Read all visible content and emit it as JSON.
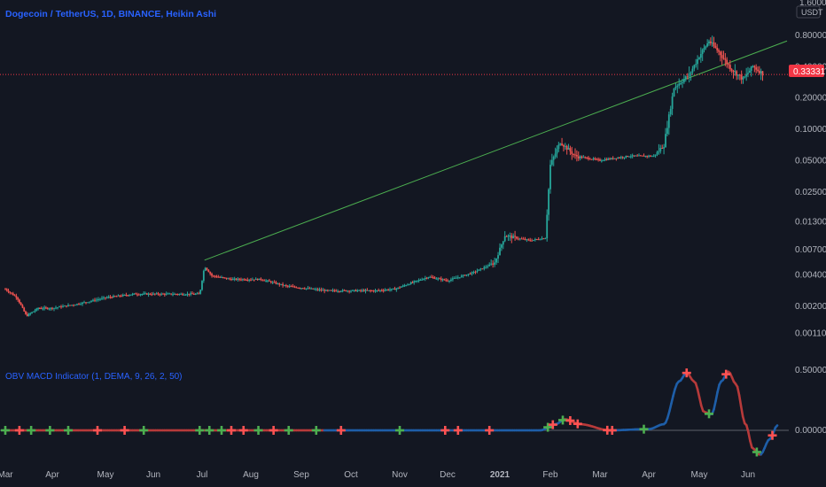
{
  "colors": {
    "background": "#131722",
    "up": "#26a69a",
    "down": "#ef5350",
    "trendline": "#4caf50",
    "title": "#2962ff",
    "axis_text": "#b2b5be",
    "price_badge": "#f23645",
    "macd_line_blue": "#1e5ea8",
    "macd_line_red": "#b73a3a",
    "zero_line": "#5d606b",
    "cross_green": "#4caf50",
    "cross_red": "#ff5252"
  },
  "header": {
    "title": "Dogecoin / TetherUS, 1D, BINANCE, Heikin Ashi"
  },
  "price_axis": {
    "currency": "USDT",
    "top_partial_label": "1.60000",
    "current_price": "0.33331"
  },
  "indicator": {
    "title": "OBV MACD Indicator (1, DEMA, 9, 26, 2, 50)",
    "ticks": [
      "0.50000",
      "0.00000"
    ]
  },
  "chart_data": [
    {
      "type": "candlestick",
      "title": "Dogecoin / TetherUS, 1D, BINANCE, Heikin Ashi",
      "y_scale": "log",
      "y_ticks": [
        "0.80000",
        "0.40000",
        "0.20000",
        "0.10000",
        "0.05000",
        "0.02500",
        "0.01300",
        "0.00700",
        "0.00400",
        "0.00200",
        "0.00110"
      ],
      "x_ticks": [
        "Mar",
        "Apr",
        "May",
        "Jun",
        "Jul",
        "Aug",
        "Sep",
        "Oct",
        "Nov",
        "Dec",
        "2021",
        "Feb",
        "Mar",
        "Apr",
        "May",
        "Jun"
      ],
      "last_price": 0.33331,
      "approx_closes": {
        "months": [
          "Mar 2020",
          "Apr 2020",
          "May 2020",
          "Jun 2020",
          "Jul 2020",
          "Aug 2020",
          "Sep 2020",
          "Oct 2020",
          "Nov 2020",
          "Dec 2020",
          "Jan 2021",
          "Feb 2021",
          "Mar 2021",
          "Apr 2021",
          "May 2021",
          "Jun 2021"
        ],
        "values": [
          0.0025,
          0.0018,
          0.0025,
          0.0026,
          0.0027,
          0.0038,
          0.0033,
          0.0027,
          0.0027,
          0.0045,
          0.0095,
          0.06,
          0.05,
          0.06,
          0.45,
          0.33
        ]
      },
      "trendline": {
        "from": {
          "date": "Jul 2020",
          "price": 0.0055
        },
        "to": {
          "date": "Jun 2021",
          "price": 0.6
        }
      }
    },
    {
      "type": "line",
      "title": "OBV MACD Indicator (1, DEMA, 9, 26, 2, 50)",
      "y_ticks": [
        "0.50000",
        "0.00000"
      ],
      "x_ticks": [
        "Mar",
        "Apr",
        "May",
        "Jun",
        "Jul",
        "Aug",
        "Sep",
        "Oct",
        "Nov",
        "Dec",
        "2021",
        "Feb",
        "Mar",
        "Apr",
        "May",
        "Jun"
      ],
      "approx_values": {
        "months": [
          "Mar 2020",
          "Apr 2020",
          "May 2020",
          "Jun 2020",
          "Jul 2020",
          "Aug 2020",
          "Sep 2020",
          "Oct 2020",
          "Nov 2020",
          "Dec 2020",
          "Jan 2021",
          "Feb 2021",
          "Mar 2021",
          "Apr 2021",
          "May 2021",
          "Jun 2021"
        ],
        "values": [
          0.0,
          0.0,
          0.0,
          0.0,
          0.0,
          0.0,
          0.0,
          0.0,
          0.0,
          0.0,
          0.0,
          0.1,
          0.0,
          0.01,
          0.48,
          0.05
        ]
      }
    }
  ]
}
